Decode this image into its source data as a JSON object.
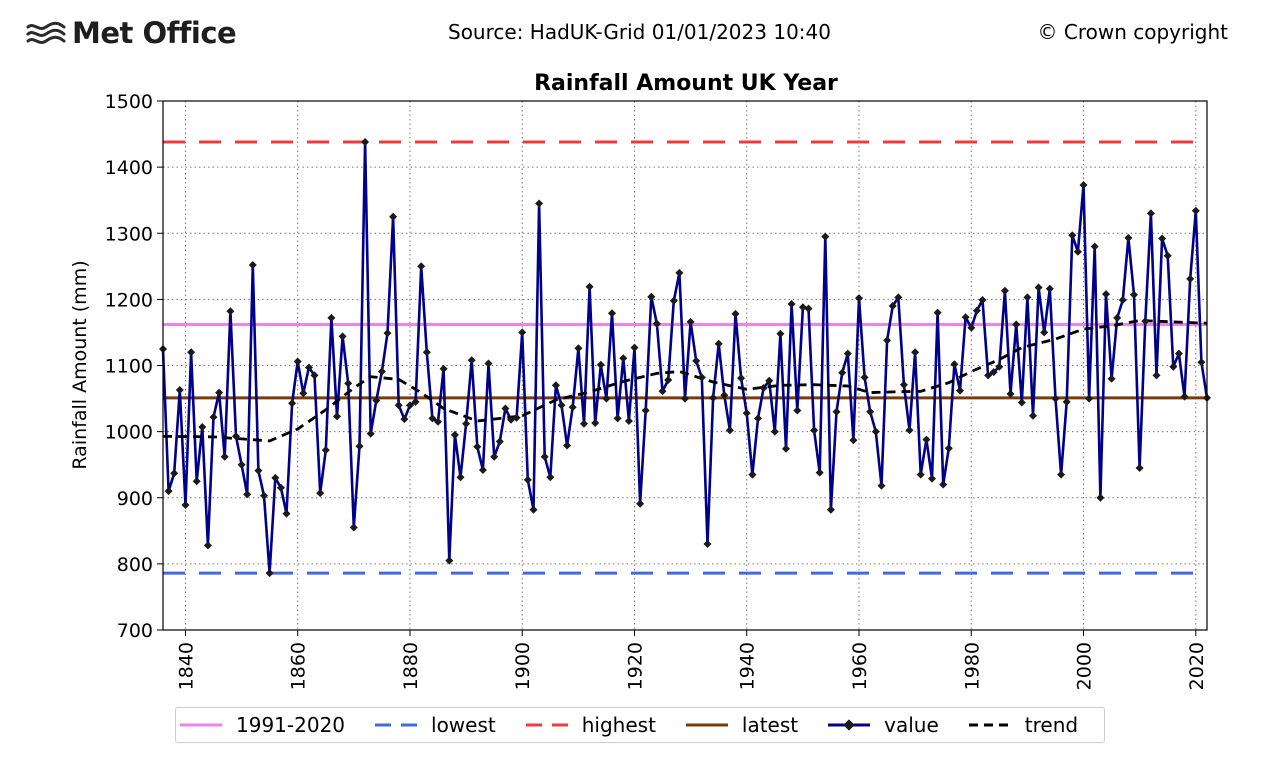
{
  "header": {
    "logo_text": "Met Office",
    "logo_icon": "waves-icon",
    "source": "Source: HadUK-Grid 01/01/2023 10:40",
    "copyright": "© Crown copyright"
  },
  "colors": {
    "value": "#00008b",
    "trend": "#000000",
    "baseline": "#ee82ee",
    "lowest": "#4169e1",
    "highest": "#ee3b3b",
    "latest": "#7a3b0a"
  },
  "chart_data": {
    "type": "line",
    "title": "Rainfall Amount UK Year",
    "ylabel": "Rainfall Amount (mm)",
    "xlabel": "",
    "xlim": [
      1836,
      2022
    ],
    "ylim": [
      700,
      1500
    ],
    "xticks": [
      1840,
      1860,
      1880,
      1900,
      1920,
      1940,
      1960,
      1980,
      2000,
      2020
    ],
    "yticks": [
      700,
      800,
      900,
      1000,
      1100,
      1200,
      1300,
      1400,
      1500
    ],
    "grid": true,
    "legend_position": "bottom-outside",
    "reference_lines": [
      {
        "name": "1991-2020",
        "value": 1162
      },
      {
        "name": "lowest",
        "value": 786
      },
      {
        "name": "highest",
        "value": 1438
      },
      {
        "name": "latest",
        "value": 1051
      }
    ],
    "legend": [
      "1991-2020",
      "lowest",
      "highest",
      "latest",
      "value",
      "trend"
    ],
    "series": [
      {
        "name": "value",
        "start_year": 1836,
        "values": [
          1125,
          910,
          937,
          1063,
          889,
          1120,
          925,
          1007,
          828,
          1022,
          1059,
          962,
          1182,
          993,
          950,
          905,
          1252,
          941,
          903,
          786,
          930,
          915,
          876,
          1043,
          1106,
          1058,
          1097,
          1085,
          907,
          972,
          1172,
          1023,
          1144,
          1073,
          855,
          978,
          1438,
          997,
          1047,
          1091,
          1149,
          1325,
          1040,
          1019,
          1040,
          1045,
          1250,
          1120,
          1020,
          1015,
          1095,
          805,
          995,
          931,
          1012,
          1108,
          977,
          942,
          1103,
          962,
          985,
          1035,
          1018,
          1021,
          1150,
          927,
          882,
          1345,
          962,
          931,
          1070,
          1040,
          979,
          1037,
          1126,
          1012,
          1219,
          1013,
          1101,
          1050,
          1179,
          1020,
          1111,
          1016,
          1127,
          891,
          1032,
          1204,
          1163,
          1061,
          1078,
          1198,
          1240,
          1050,
          1166,
          1107,
          1082,
          830,
          1051,
          1133,
          1055,
          1002,
          1178,
          1081,
          1028,
          935,
          1020,
          1066,
          1077,
          1000,
          1148,
          974,
          1193,
          1032,
          1188,
          1186,
          1002,
          938,
          1295,
          882,
          1030,
          1089,
          1118,
          987,
          1202,
          1082,
          1030,
          1000,
          918,
          1138,
          1190,
          1203,
          1071,
          1002,
          1120,
          935,
          988,
          929,
          1180,
          920,
          975,
          1102,
          1062,
          1173,
          1157,
          1183,
          1199,
          1085,
          1090,
          1098,
          1213,
          1057,
          1162,
          1044,
          1203,
          1024,
          1218,
          1150,
          1216,
          1050,
          935,
          1045,
          1297,
          1272,
          1373,
          1050,
          1280,
          900,
          1208,
          1080,
          1172,
          1199,
          1293,
          1207,
          945,
          1167,
          1330,
          1085,
          1292,
          1266,
          1098,
          1118,
          1053,
          1231,
          1334,
          1105,
          1051
        ]
      },
      {
        "name": "trend",
        "x": [
          1836,
          1845,
          1850,
          1855,
          1860,
          1865,
          1870,
          1873,
          1878,
          1882,
          1886,
          1892,
          1900,
          1906,
          1912,
          1918,
          1924,
          1928,
          1934,
          1940,
          1946,
          1952,
          1958,
          1962,
          1966,
          1971,
          1976,
          1980,
          1985,
          1989,
          1995,
          2000,
          2005,
          2010,
          2016,
          2022
        ],
        "values": [
          993,
          992,
          989,
          986,
          1004,
          1033,
          1066,
          1083,
          1079,
          1059,
          1035,
          1016,
          1024,
          1048,
          1060,
          1076,
          1088,
          1091,
          1075,
          1064,
          1070,
          1071,
          1069,
          1059,
          1060,
          1061,
          1074,
          1091,
          1109,
          1127,
          1140,
          1155,
          1160,
          1168,
          1166,
          1164
        ]
      }
    ]
  }
}
